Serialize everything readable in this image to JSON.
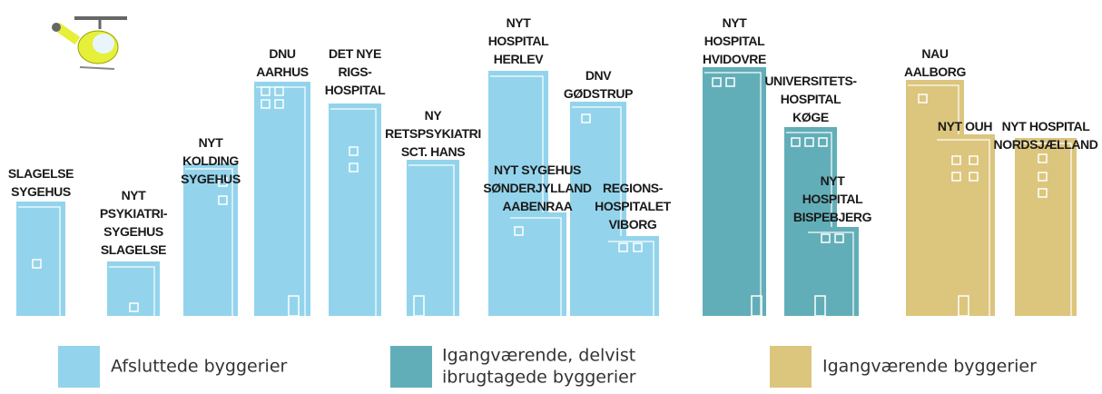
{
  "buildings": [
    {
      "lines": [
        "SLAGELSE",
        "SYGEHUS"
      ]
    },
    {
      "lines": [
        "NYT",
        "PSYKIATRI-",
        "SYGEHUS",
        "SLAGELSE"
      ]
    },
    {
      "lines": [
        "NYT",
        "KOLDING",
        "SYGEHUS"
      ]
    },
    {
      "lines": [
        "DNU",
        "AARHUS"
      ]
    },
    {
      "lines": [
        "DET NYE",
        "RIGS-",
        "HOSPITAL"
      ]
    },
    {
      "lines": [
        "NY",
        "RETSPSYKIATRI",
        "SCT. HANS"
      ]
    },
    {
      "lines": [
        "NYT",
        "HOSPITAL",
        "HERLEV"
      ]
    },
    {
      "lines": [
        "DNV",
        "GØDSTRUP"
      ]
    },
    {
      "lines": [
        "NYT SYGEHUS",
        "SØNDERJYLLAND",
        "AABENRAA"
      ]
    },
    {
      "lines": [
        "REGIONS-",
        "HOSPITALET",
        "VIBORG"
      ]
    },
    {
      "lines": [
        "NYT",
        "HOSPITAL",
        "HVIDOVRE"
      ]
    },
    {
      "lines": [
        "UNIVERSITETS-",
        "HOSPITAL",
        "KØGE"
      ]
    },
    {
      "lines": [
        "NYT",
        "HOSPITAL",
        "BISPEBJERG"
      ]
    },
    {
      "lines": [
        "NAU",
        "AALBORG"
      ]
    },
    {
      "lines": [
        "NYT OUH"
      ]
    },
    {
      "lines": [
        "NYT HOSPITAL",
        "NORDSJÆLLAND"
      ]
    }
  ],
  "legend": [
    {
      "color": "#93d4ec",
      "lines": [
        "Afsluttede byggerier"
      ]
    },
    {
      "color": "#62aeb8",
      "lines": [
        "Igangværende, delvist",
        "ibrugtagede byggerier"
      ]
    },
    {
      "color": "#dcc57d",
      "lines": [
        "Igangværende byggerier"
      ]
    }
  ]
}
